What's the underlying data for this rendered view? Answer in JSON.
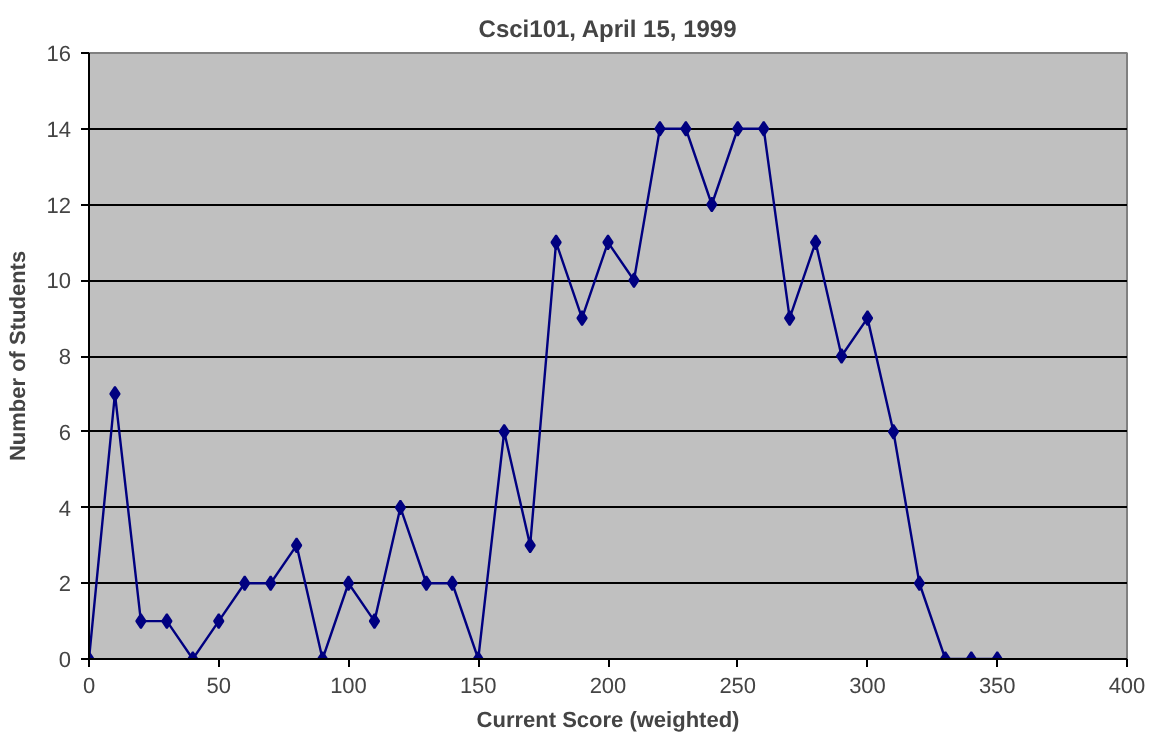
{
  "chart_data": {
    "type": "line",
    "title": "Csci101, April 15, 1999",
    "xlabel": "Current Score (weighted)",
    "ylabel": "Number of Students",
    "x": [
      0,
      10,
      20,
      30,
      40,
      50,
      60,
      70,
      80,
      90,
      100,
      110,
      120,
      130,
      140,
      150,
      160,
      170,
      180,
      190,
      200,
      210,
      220,
      230,
      240,
      250,
      260,
      270,
      280,
      290,
      300,
      310,
      320,
      330,
      340,
      350
    ],
    "series": [
      {
        "color": "#000080",
        "values": [
          0,
          7,
          1,
          1,
          0,
          1,
          2,
          2,
          3,
          0,
          2,
          1,
          4,
          2,
          2,
          0,
          6,
          3,
          11,
          9,
          11,
          10,
          14,
          14,
          12,
          14,
          14,
          9,
          11,
          8,
          9,
          6,
          2,
          0,
          0,
          0
        ]
      }
    ],
    "xlim": [
      0,
      400
    ],
    "ylim": [
      0,
      16
    ],
    "xticks": [
      0,
      50,
      100,
      150,
      200,
      250,
      300,
      350,
      400
    ],
    "yticks": [
      0,
      2,
      4,
      6,
      8,
      10,
      12,
      14,
      16
    ],
    "grid": "y",
    "marker": "diamond",
    "line_style": "solid"
  }
}
